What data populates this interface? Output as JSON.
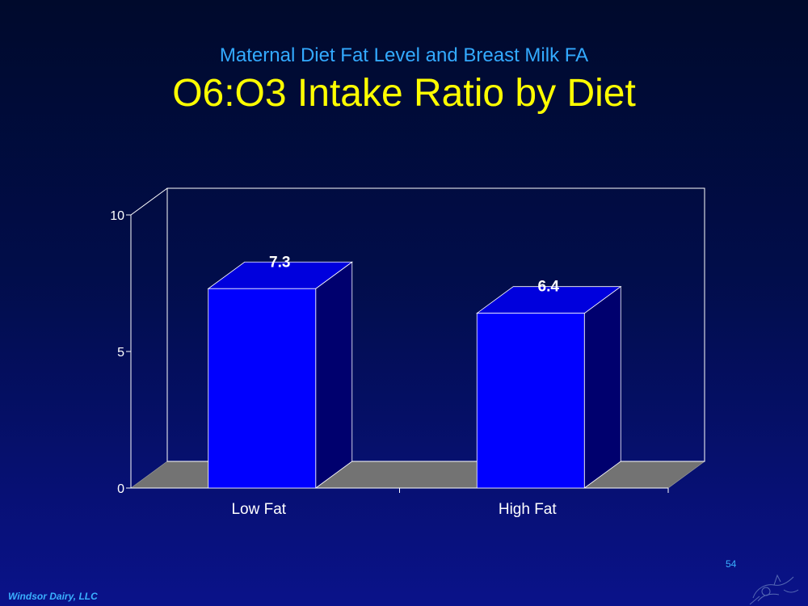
{
  "slide": {
    "subtitle": "Maternal Diet Fat Level and Breast Milk FA",
    "title": "O6:O3 Intake Ratio by Diet",
    "footer": "Windsor Dairy, LLC",
    "slide_number": "54"
  },
  "chart_data": {
    "type": "bar",
    "title": "",
    "xlabel": "",
    "ylabel": "",
    "categories": [
      "Low Fat",
      "High Fat"
    ],
    "values": [
      7.3,
      6.4
    ],
    "value_labels": [
      "7.3",
      "6.4"
    ],
    "ylim": [
      0,
      10
    ],
    "yticks": [
      0,
      5,
      10
    ],
    "ytick_labels": [
      "0",
      "5",
      "10"
    ],
    "grid": false,
    "legend": "none",
    "style": "3d",
    "colors": {
      "bar_front": "#0000ff",
      "bar_top": "#0000dd",
      "bar_side": "#00006e",
      "floor": "#737373",
      "axis": "#ffffff",
      "label": "#ffffff"
    }
  }
}
